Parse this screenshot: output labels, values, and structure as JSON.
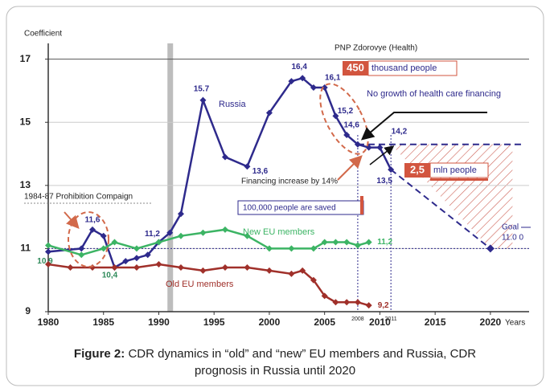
{
  "chart_data": {
    "type": "line",
    "ylabel": "Coefficient",
    "xlabel": "Years",
    "xlim": [
      1980,
      2023.5
    ],
    "xticks": [
      1980,
      1985,
      1990,
      1995,
      2000,
      2005,
      2010,
      2015,
      2020
    ],
    "ylim": [
      9,
      17.5
    ],
    "yticks": [
      9,
      11,
      13,
      15,
      17
    ],
    "grid": true,
    "series": [
      {
        "name": "Russia",
        "color": "#2e2a8c",
        "x": [
          1980,
          1983,
          1984,
          1985,
          1986,
          1987,
          1988,
          1989,
          1990,
          1991,
          1992,
          1994,
          1996,
          1998,
          2000,
          2002,
          2003,
          2004,
          2005,
          2006,
          2007,
          2008,
          2009,
          2010,
          2011
        ],
        "values": [
          10.9,
          11.0,
          11.6,
          11.4,
          10.4,
          10.6,
          10.7,
          10.8,
          11.2,
          11.5,
          12.1,
          15.7,
          13.9,
          13.6,
          15.3,
          16.3,
          16.4,
          16.1,
          16.1,
          15.2,
          14.6,
          14.3,
          14.2,
          14.2,
          13.5
        ],
        "value_labels": [
          "10,9",
          null,
          "11,6",
          null,
          "10,4",
          null,
          null,
          null,
          "11,2",
          null,
          null,
          "15.7",
          null,
          "13,6",
          null,
          null,
          "16,4",
          null,
          "16,1",
          "15,2",
          "14,6",
          null,
          null,
          "14,2",
          "13,5"
        ]
      },
      {
        "name": "New EU members",
        "color": "#3cb464",
        "x": [
          1980,
          1983,
          1985,
          1986,
          1988,
          1990,
          1992,
          1994,
          1996,
          1998,
          2000,
          2002,
          2004,
          2005,
          2006,
          2007,
          2008,
          2009
        ],
        "values": [
          11.1,
          10.8,
          11.0,
          11.2,
          11.0,
          11.2,
          11.4,
          11.5,
          11.6,
          11.4,
          11.0,
          11.0,
          11.0,
          11.2,
          11.2,
          11.2,
          11.1,
          11.2
        ],
        "value_labels": [
          null,
          null,
          null,
          null,
          null,
          null,
          null,
          null,
          null,
          null,
          null,
          null,
          null,
          null,
          null,
          null,
          null,
          "11,2"
        ]
      },
      {
        "name": "Old EU members",
        "color": "#a0302a",
        "x": [
          1980,
          1982,
          1984,
          1986,
          1988,
          1990,
          1992,
          1994,
          1996,
          1998,
          2000,
          2002,
          2003,
          2004,
          2005,
          2006,
          2007,
          2008,
          2009
        ],
        "values": [
          10.5,
          10.4,
          10.4,
          10.4,
          10.4,
          10.5,
          10.4,
          10.3,
          10.4,
          10.4,
          10.3,
          10.2,
          10.3,
          10.0,
          9.5,
          9.3,
          9.3,
          9.3,
          9.2
        ],
        "value_labels": [
          null,
          null,
          null,
          null,
          null,
          null,
          null,
          null,
          null,
          null,
          null,
          null,
          null,
          null,
          null,
          null,
          null,
          null,
          "9,2"
        ]
      },
      {
        "color": "#2e2a8c",
        "dashed": true,
        "x": [
          2011,
          2020
        ],
        "values": [
          13.5,
          11.0
        ]
      },
      {
        "color": "#2e2a8c",
        "dashed": true,
        "x": [
          2008,
          2023
        ],
        "values": [
          14.3,
          14.3
        ]
      }
    ],
    "goal": {
      "label": "Goal",
      "value_label": "11.0 0",
      "x": 2020,
      "value": 11.0
    },
    "markers": [
      {
        "x": 2008,
        "label": "2008"
      },
      {
        "x": 2011,
        "label": "2011"
      }
    ],
    "annotations": [
      "PNP Zdorovye (Health)",
      "450",
      "thousand people",
      "No growth of health care financing",
      "Financing increase by 14%",
      "2,5",
      "mln people",
      "100,000 people are saved",
      "1984-87 Prohibition Compaign"
    ]
  },
  "caption": {
    "label": "Figure 2:",
    "lines": [
      "CDR dynamics in “old” and “new” EU members and Russia, CDR",
      "prognosis in Russia until 2020"
    ]
  }
}
